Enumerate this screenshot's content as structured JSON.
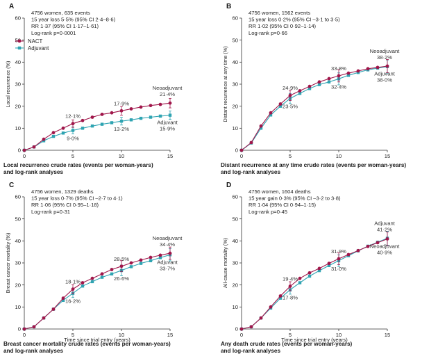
{
  "colors": {
    "nact": "#a0164a",
    "adjuvant": "#2fa4b2",
    "axis": "#333333"
  },
  "legend": {
    "nact": "NACT",
    "adjuvant": "Adjuvant"
  },
  "chart_data": [
    {
      "type": "line",
      "panel": "A",
      "caption": [
        "Local recurrence crude rates (events per woman-years)",
        "and log-rank analyses"
      ],
      "stats": [
        "4756 women, 635 events",
        "15 year loss 5·5% (95% CI 2·4–8·6)",
        "RR 1·37 (95% CI 1·17–1·61)",
        "Log-rank p=0·0001"
      ],
      "ylabel": "Local recurrence (%)",
      "xlabel": "",
      "xlim": [
        0,
        15
      ],
      "ylim": [
        0,
        60
      ],
      "xticks": [
        "0",
        "5",
        "10",
        "15"
      ],
      "yticks": [
        "0",
        "10",
        "20",
        "30",
        "40",
        "50",
        "60"
      ],
      "show_legend": true,
      "x": [
        0,
        1,
        2,
        3,
        4,
        5,
        6,
        7,
        8,
        9,
        10,
        11,
        12,
        13,
        14,
        15
      ],
      "series": [
        {
          "name": "NACT",
          "values": [
            0,
            1.5,
            5,
            8,
            10,
            12.1,
            13.5,
            15,
            16.3,
            17,
            17.9,
            18.8,
            19.6,
            20.3,
            20.8,
            21.4
          ]
        },
        {
          "name": "Adjuvant",
          "values": [
            0,
            1.5,
            4.3,
            6.3,
            7.8,
            9.0,
            10.0,
            11.0,
            11.8,
            12.5,
            13.2,
            13.8,
            14.5,
            15.0,
            15.5,
            15.9
          ]
        }
      ],
      "annotations": [
        {
          "text": "12·1%",
          "x": 5,
          "y": 12.1,
          "pos": "above"
        },
        {
          "text": "9·0%",
          "x": 5,
          "y": 9.0,
          "pos": "below"
        },
        {
          "text": "17·9%",
          "x": 10,
          "y": 17.9,
          "pos": "above"
        },
        {
          "text": "13·2%",
          "x": 10,
          "y": 13.2,
          "pos": "below"
        },
        {
          "text": "Neoadjuvant",
          "x": 15,
          "y": 21.4,
          "pos": "end-above-1"
        },
        {
          "text": "21·4%",
          "x": 15,
          "y": 21.4,
          "pos": "end-above-2"
        },
        {
          "text": "Adjuvant",
          "x": 15,
          "y": 15.9,
          "pos": "end-below-1"
        },
        {
          "text": "15·9%",
          "x": 15,
          "y": 15.9,
          "pos": "end-below-2"
        }
      ]
    },
    {
      "type": "line",
      "panel": "B",
      "caption": [
        "Distant recurrence at any time crude rates (events per woman-years)",
        "and log-rank analyses"
      ],
      "stats": [
        "4756 women, 1562 events",
        "15 year loss 0·2% (95% CI –3·1 to 3·5)",
        "RR 1·02 (95% CI 0·92–1·14)",
        "Log-rank p=0·66"
      ],
      "ylabel": "Distant recurrence at any time (%)",
      "xlabel": "",
      "xlim": [
        0,
        15
      ],
      "ylim": [
        0,
        60
      ],
      "xticks": [
        "0",
        "5",
        "10",
        "15"
      ],
      "yticks": [
        "0",
        "10",
        "20",
        "30",
        "40",
        "50",
        "60"
      ],
      "show_legend": false,
      "x": [
        0,
        1,
        2,
        3,
        4,
        5,
        6,
        7,
        8,
        9,
        10,
        11,
        12,
        13,
        14,
        15
      ],
      "series": [
        {
          "name": "NACT",
          "values": [
            0,
            3.5,
            11,
            17,
            21,
            24.9,
            27,
            29,
            31,
            32.5,
            33.8,
            35,
            36,
            37,
            37.6,
            38.2
          ]
        },
        {
          "name": "Adjuvant",
          "values": [
            0,
            3.3,
            10,
            16,
            20,
            23.5,
            25.8,
            28,
            29.8,
            31,
            32.4,
            34,
            35.3,
            36.5,
            37.3,
            38.0
          ]
        }
      ],
      "annotations": [
        {
          "text": "24·9%",
          "x": 5,
          "y": 24.9,
          "pos": "above"
        },
        {
          "text": "23·5%",
          "x": 5,
          "y": 23.5,
          "pos": "below"
        },
        {
          "text": "33·8%",
          "x": 10,
          "y": 33.8,
          "pos": "above"
        },
        {
          "text": "32·4%",
          "x": 10,
          "y": 32.4,
          "pos": "below"
        },
        {
          "text": "Neoadjuvant",
          "x": 15,
          "y": 38.2,
          "pos": "end-above-1"
        },
        {
          "text": "38·2%",
          "x": 15,
          "y": 38.2,
          "pos": "end-above-2"
        },
        {
          "text": "Adjuvant",
          "x": 15,
          "y": 38.0,
          "pos": "end-below-1"
        },
        {
          "text": "38·0%",
          "x": 15,
          "y": 38.0,
          "pos": "end-below-2"
        }
      ]
    },
    {
      "type": "line",
      "panel": "C",
      "caption": [
        "Breast cancer mortality crude rates (events per woman-years)",
        "and log-rank analyses"
      ],
      "stats": [
        "4756 women, 1329 deaths",
        "15 year loss 0·7% (95% CI –2·7 to 4·1)",
        "RR 1·06 (95% CI 0·95–1·18)",
        "Log-rank p=0·31"
      ],
      "ylabel": "Breast cancer mortality (%)",
      "xlabel": "Time since trial entry (years)",
      "xlim": [
        0,
        15
      ],
      "ylim": [
        0,
        60
      ],
      "xticks": [
        "0",
        "5",
        "10",
        "15"
      ],
      "yticks": [
        "0",
        "10",
        "20",
        "30",
        "40",
        "50",
        "60"
      ],
      "show_legend": false,
      "x": [
        0,
        1,
        2,
        3,
        4,
        5,
        6,
        7,
        8,
        9,
        10,
        11,
        12,
        13,
        14,
        15
      ],
      "series": [
        {
          "name": "NACT",
          "values": [
            0,
            1,
            5,
            9,
            14,
            18.1,
            21,
            23,
            25,
            27,
            28.5,
            30,
            31.3,
            32.5,
            33.5,
            34.4
          ]
        },
        {
          "name": "Adjuvant",
          "values": [
            0,
            1,
            5,
            9,
            13,
            16.2,
            19.5,
            21.5,
            23.5,
            25,
            26.6,
            28.3,
            29.8,
            31,
            32.4,
            33.7
          ]
        }
      ],
      "annotations": [
        {
          "text": "18·1%",
          "x": 5,
          "y": 18.1,
          "pos": "above"
        },
        {
          "text": "16·2%",
          "x": 5,
          "y": 16.2,
          "pos": "below"
        },
        {
          "text": "28·5%",
          "x": 10,
          "y": 28.5,
          "pos": "above"
        },
        {
          "text": "26·6%",
          "x": 10,
          "y": 26.6,
          "pos": "below"
        },
        {
          "text": "Neoadjuvant",
          "x": 15,
          "y": 34.4,
          "pos": "end-above-1"
        },
        {
          "text": "34·4%",
          "x": 15,
          "y": 34.4,
          "pos": "end-above-2"
        },
        {
          "text": "Adjuvant",
          "x": 15,
          "y": 33.7,
          "pos": "end-below-1"
        },
        {
          "text": "33·7%",
          "x": 15,
          "y": 33.7,
          "pos": "end-below-2"
        }
      ]
    },
    {
      "type": "line",
      "panel": "D",
      "caption": [
        "Any death crude rates (events per woman-years)",
        "and log-rank analyses"
      ],
      "stats": [
        "4756 women, 1604 deaths",
        "15 year gain 0·3% (95% CI –3·2 to 3·8)",
        "RR 1·04 (95% CI 0·94–1·15)",
        "Log-rank p=0·45"
      ],
      "ylabel": "All-cause mortality (%)",
      "xlabel": "Time since trial entry (years)",
      "xlim": [
        0,
        15
      ],
      "ylim": [
        0,
        60
      ],
      "xticks": [
        "0",
        "5",
        "10",
        "15"
      ],
      "yticks": [
        "0",
        "10",
        "20",
        "30",
        "40",
        "50",
        "60"
      ],
      "show_legend": false,
      "x": [
        0,
        1,
        2,
        3,
        4,
        5,
        6,
        7,
        8,
        9,
        10,
        11,
        12,
        13,
        14,
        15
      ],
      "series": [
        {
          "name": "NACT",
          "values": [
            0,
            1,
            5,
            10,
            15,
            19.4,
            23,
            25.5,
            27.5,
            29.8,
            31.9,
            33.8,
            35.6,
            37.5,
            39.2,
            40.9
          ]
        },
        {
          "name": "Adjuvant",
          "values": [
            0,
            1,
            5,
            9.5,
            14,
            17.8,
            21,
            24,
            26.5,
            28.8,
            31.0,
            33.3,
            35.5,
            37.6,
            39.4,
            41.2
          ]
        }
      ],
      "annotations": [
        {
          "text": "19·4%",
          "x": 5,
          "y": 19.4,
          "pos": "above"
        },
        {
          "text": "17·8%",
          "x": 5,
          "y": 17.8,
          "pos": "below"
        },
        {
          "text": "31·9%",
          "x": 10,
          "y": 31.9,
          "pos": "above"
        },
        {
          "text": "31·0%",
          "x": 10,
          "y": 31.0,
          "pos": "below"
        },
        {
          "text": "Adjuvant",
          "x": 15,
          "y": 41.2,
          "pos": "end-above-1"
        },
        {
          "text": "41·2%",
          "x": 15,
          "y": 41.2,
          "pos": "end-above-2"
        },
        {
          "text": "Neoadjuvant",
          "x": 15,
          "y": 40.9,
          "pos": "end-below-1"
        },
        {
          "text": "40·9%",
          "x": 15,
          "y": 40.9,
          "pos": "end-below-2"
        }
      ]
    }
  ]
}
